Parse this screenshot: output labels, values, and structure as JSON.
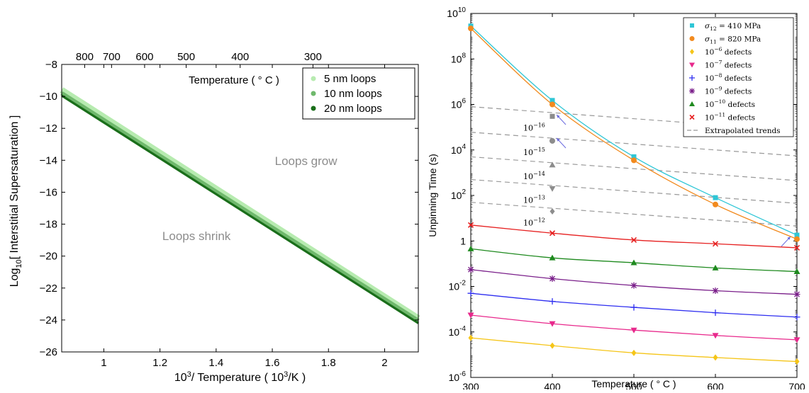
{
  "chart_data": [
    {
      "type": "line",
      "xlabel_main": "10",
      "xlabel_sup": "3",
      "xlabel_rest": "/ Temperature ( 10",
      "xlabel_sup2": "3",
      "xlabel_end": "/K )",
      "ylabel_main": "Log",
      "ylabel_sub": "10",
      "ylabel_rest": "[ Interstitial Supersaturation ]",
      "top_axis_label": "Temperature ( ° C )",
      "xlim": [
        0.85,
        2.12
      ],
      "ylim": [
        -26,
        -8
      ],
      "x_ticks": [
        "1",
        "1.2",
        "1.4",
        "1.6",
        "1.8",
        "2"
      ],
      "x_tick_values": [
        1.0,
        1.2,
        1.4,
        1.6,
        1.8,
        2.0
      ],
      "y_ticks": [
        "−10",
        "−12",
        "−14",
        "−16",
        "−18",
        "−20",
        "−22",
        "−24",
        "−26"
      ],
      "y_tick_values": [
        -10,
        -12,
        -14,
        -16,
        -18,
        -20,
        -22,
        -24,
        -26
      ],
      "y_top_tick_label": "−8",
      "top_ticks": [
        "800",
        "700",
        "600",
        "500",
        "400",
        "300"
      ],
      "top_tick_celsius": [
        800,
        700,
        600,
        500,
        400,
        300
      ],
      "annotations": [
        {
          "text": "Loops grow",
          "x": 1.72,
          "y": -14.3
        },
        {
          "text": "Loops shrink",
          "x": 1.33,
          "y": -19.0
        }
      ],
      "legend_position": "top-right",
      "series": [
        {
          "name": "5 nm loops",
          "color": "#b7ebb0",
          "x": [
            0.85,
            2.12
          ],
          "y": [
            -9.6,
            -23.9
          ]
        },
        {
          "name": "10 nm loops",
          "color": "#6fb86c",
          "x": [
            0.85,
            2.12
          ],
          "y": [
            -9.8,
            -24.05
          ]
        },
        {
          "name": "20 nm loops",
          "color": "#1a6e1a",
          "x": [
            0.85,
            2.12
          ],
          "y": [
            -9.95,
            -24.2
          ]
        }
      ]
    },
    {
      "type": "scatter",
      "xlabel": "Temperature ( ° C )",
      "ylabel": "Unpinning Time (s)",
      "xlim": [
        300,
        700
      ],
      "ylim_log10": [
        -6,
        10
      ],
      "y_scale": "log",
      "x_ticks": [
        "300",
        "400",
        "500",
        "600",
        "700"
      ],
      "x_tick_values": [
        300,
        400,
        500,
        600,
        700
      ],
      "y_ticks": [
        {
          "base": "10",
          "exp": "10",
          "p": 10
        },
        {
          "base": "10",
          "exp": "8",
          "p": 8
        },
        {
          "base": "10",
          "exp": "6",
          "p": 6
        },
        {
          "base": "10",
          "exp": "4",
          "p": 4
        },
        {
          "base": "10",
          "exp": "2",
          "p": 2
        },
        {
          "base": "1",
          "exp": "",
          "p": 0
        },
        {
          "base": "10",
          "exp": "-2",
          "p": -2
        },
        {
          "base": "10",
          "exp": "-4",
          "p": -4
        },
        {
          "base": "10",
          "exp": "-6",
          "p": -6
        }
      ],
      "legend_position": "top-right",
      "series": [
        {
          "name_pre": "σ",
          "name_sub": "12",
          "name_post": " = 410 MPa",
          "color": "#2ec6d6",
          "marker": "square",
          "x": [
            300,
            400,
            500,
            600,
            700
          ],
          "y": [
            2800000000.0,
            1500000.0,
            5000.0,
            80,
            1.8
          ]
        },
        {
          "name_pre": "σ",
          "name_sub": "11",
          "name_post": " = 820 MPa",
          "color": "#f28a1e",
          "marker": "circle",
          "x": [
            300,
            400,
            500,
            600,
            700
          ],
          "y": [
            2200000000.0,
            1000000.0,
            3500.0,
            40,
            1.2
          ]
        },
        {
          "name_pre": "10",
          "name_sup": "−6",
          "name_post": " defects",
          "color": "#f5c518",
          "marker": "diamond",
          "x": [
            300,
            400,
            500,
            600,
            700
          ],
          "y": [
            5.5e-05,
            2.5e-05,
            1.2e-05,
            7.5e-06,
            5e-06
          ]
        },
        {
          "name_pre": "10",
          "name_sup": "−7",
          "name_post": " defects",
          "color": "#e8298c",
          "marker": "tri-down",
          "x": [
            300,
            400,
            500,
            600,
            700
          ],
          "y": [
            0.00055,
            0.00023,
            0.00012,
            7e-05,
            4.5e-05
          ]
        },
        {
          "name_pre": "10",
          "name_sup": "−8",
          "name_post": " defects",
          "color": "#2e2ef0",
          "marker": "plus",
          "x": [
            300,
            400,
            500,
            600,
            700
          ],
          "y": [
            0.005,
            0.0022,
            0.0012,
            0.0007,
            0.00045
          ]
        },
        {
          "name_pre": "10",
          "name_sup": "−9",
          "name_post": " defects",
          "color": "#7a1f8a",
          "marker": "star",
          "x": [
            300,
            400,
            500,
            600,
            700
          ],
          "y": [
            0.055,
            0.022,
            0.011,
            0.0065,
            0.0045
          ]
        },
        {
          "name_pre": "10",
          "name_sup": "−10",
          "name_post": " defects",
          "color": "#1f8a1f",
          "marker": "tri-up",
          "x": [
            300,
            400,
            500,
            600,
            700
          ],
          "y": [
            0.45,
            0.18,
            0.11,
            0.065,
            0.045
          ]
        },
        {
          "name_pre": "10",
          "name_sup": "−11",
          "name_post": " defects",
          "color": "#e62020",
          "marker": "x",
          "x": [
            300,
            400,
            500,
            600,
            700
          ],
          "y": [
            5.0,
            2.2,
            1.1,
            0.75,
            0.5
          ]
        }
      ],
      "extrapolated": {
        "name": "Extrapolated trends",
        "color": "#999999",
        "lines": [
          {
            "y300": 800000.0,
            "y700": 70000.0
          },
          {
            "y300": 60000.0,
            "y700": 5500.0
          },
          {
            "y300": 5000.0,
            "y700": 450.0
          },
          {
            "y300": 500.0,
            "y700": 45.0
          },
          {
            "y300": 50.0,
            "y700": 4.5
          }
        ],
        "labels": [
          {
            "base": "10",
            "exp": "−16",
            "marker": "square",
            "y": 300000.0
          },
          {
            "base": "10",
            "exp": "−15",
            "marker": "circle",
            "y": 25000.0
          },
          {
            "base": "10",
            "exp": "−14",
            "marker": "tri-up",
            "y": 2200.0
          },
          {
            "base": "10",
            "exp": "−13",
            "marker": "tri-down",
            "y": 200.0
          },
          {
            "base": "10",
            "exp": "−12",
            "marker": "diamond",
            "y": 20.0
          }
        ]
      },
      "arrow_color": "#6b6bdf"
    }
  ]
}
